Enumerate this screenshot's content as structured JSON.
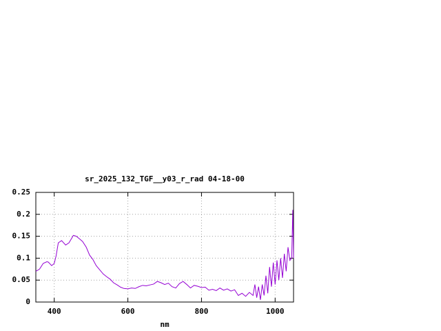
{
  "chart_data": {
    "type": "line",
    "title": "sr_2025_132_TGF__y03_r_rad 04-18-00",
    "x_label": "nm",
    "x": [
      350,
      360,
      370,
      380,
      384,
      393,
      400,
      405,
      411,
      420,
      431,
      440,
      452,
      460,
      470,
      477,
      487,
      496,
      505,
      514,
      523,
      533,
      542,
      552,
      561,
      571,
      580,
      589,
      600,
      610,
      620,
      630,
      640,
      650,
      660,
      670,
      680,
      690,
      700,
      710,
      720,
      730,
      740,
      750,
      760,
      770,
      780,
      790,
      800,
      810,
      820,
      830,
      840,
      850,
      860,
      870,
      880,
      890,
      900,
      910,
      920,
      930,
      940,
      945,
      950,
      955,
      960,
      965,
      970,
      975,
      980,
      985,
      990,
      995,
      1000,
      1005,
      1010,
      1015,
      1020,
      1025,
      1030,
      1035,
      1040,
      1045,
      1048,
      1050
    ],
    "series": [
      {
        "name": "sr_2025_132_TGF__y03_r_rad",
        "color": "#9400d3",
        "values": [
          0.07,
          0.075,
          0.088,
          0.092,
          0.091,
          0.083,
          0.088,
          0.105,
          0.135,
          0.14,
          0.13,
          0.135,
          0.152,
          0.15,
          0.143,
          0.138,
          0.125,
          0.107,
          0.097,
          0.083,
          0.074,
          0.064,
          0.058,
          0.052,
          0.044,
          0.039,
          0.034,
          0.031,
          0.03,
          0.032,
          0.031,
          0.035,
          0.038,
          0.037,
          0.039,
          0.041,
          0.047,
          0.044,
          0.04,
          0.043,
          0.035,
          0.032,
          0.042,
          0.047,
          0.04,
          0.032,
          0.038,
          0.036,
          0.033,
          0.034,
          0.027,
          0.029,
          0.026,
          0.032,
          0.027,
          0.03,
          0.025,
          0.028,
          0.015,
          0.02,
          0.013,
          0.022,
          0.015,
          0.04,
          0.01,
          0.035,
          0.005,
          0.04,
          0.015,
          0.06,
          0.02,
          0.08,
          0.035,
          0.09,
          0.04,
          0.095,
          0.05,
          0.1,
          0.055,
          0.11,
          0.07,
          0.125,
          0.095,
          0.1,
          0.21,
          0.1
        ]
      }
    ],
    "xlim": [
      350,
      1050
    ],
    "ylim": [
      0,
      0.25
    ],
    "xticks": [
      400,
      600,
      800,
      1000
    ],
    "yticks": [
      0,
      0.05,
      0.1,
      0.15,
      0.2,
      0.25
    ],
    "grid": true
  }
}
